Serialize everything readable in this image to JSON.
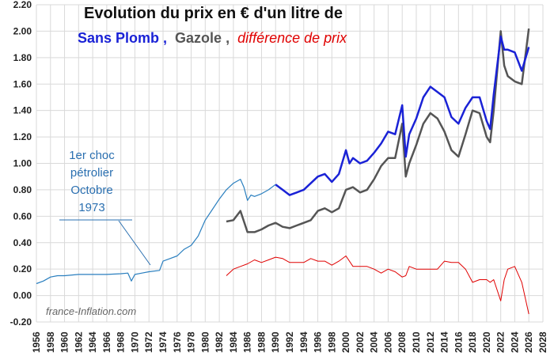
{
  "title": {
    "line1": "Evolution du prix en € d'un litre de",
    "sans_plomb": "Sans Plomb ,",
    "gazole": "Gazole ,",
    "difference": "différence de prix"
  },
  "annotation": {
    "line1": "1er choc",
    "line2": "pétrolier",
    "line3": "Octobre",
    "line4": "1973"
  },
  "watermark": "france-Inflation.com",
  "colors": {
    "early": "#2a7fbf",
    "sans_plomb": "#1a22d6",
    "gazole": "#555555",
    "difference": "#e00000",
    "grid": "#d9d9d9"
  },
  "chart_data": {
    "type": "line",
    "xlim": [
      1956,
      2028
    ],
    "ylim": [
      -0.2,
      2.2
    ],
    "y_ticks": [
      "2.20",
      "2.00",
      "1.80",
      "1.60",
      "1.40",
      "1.20",
      "1.00",
      "0.80",
      "0.60",
      "0.40",
      "0.20",
      "0.00",
      "-0.20"
    ],
    "x_ticks": [
      "1956",
      "1958",
      "1960",
      "1962",
      "1964",
      "1966",
      "1968",
      "1970",
      "1972",
      "1974",
      "1976",
      "1978",
      "1980",
      "1982",
      "1984",
      "1986",
      "1988",
      "1990",
      "1992",
      "1994",
      "1996",
      "1998",
      "2000",
      "2002",
      "2004",
      "2006",
      "2008",
      "2010",
      "2012",
      "2014",
      "2016",
      "2018",
      "2020",
      "2022",
      "2024",
      "2026",
      "2028"
    ],
    "grid": true,
    "series": [
      {
        "name": "",
        "role": "early",
        "x": [
          1956,
          1957,
          1958,
          1959,
          1960,
          1962,
          1964,
          1966,
          1968,
          1969,
          1969.5,
          1970,
          1971,
          1972,
          1973.5,
          1974,
          1975,
          1976,
          1977,
          1978,
          1979,
          1980,
          1981,
          1982,
          1983,
          1984,
          1985,
          1985.5,
          1986,
          1986.5,
          1987,
          1988,
          1989,
          1990
        ],
        "y": [
          0.09,
          0.11,
          0.14,
          0.15,
          0.15,
          0.16,
          0.16,
          0.16,
          0.165,
          0.17,
          0.11,
          0.16,
          0.17,
          0.18,
          0.19,
          0.26,
          0.28,
          0.3,
          0.35,
          0.38,
          0.45,
          0.57,
          0.65,
          0.73,
          0.8,
          0.85,
          0.88,
          0.82,
          0.72,
          0.76,
          0.75,
          0.77,
          0.8,
          0.84
        ]
      },
      {
        "name": "Sans Plomb",
        "role": "sans_plomb",
        "x": [
          1990,
          1991,
          1992,
          1993,
          1994,
          1995,
          1996,
          1997,
          1998,
          1999,
          2000,
          2000.5,
          2001,
          2002,
          2003,
          2004,
          2005,
          2006,
          2007,
          2008,
          2008.5,
          2009,
          2010,
          2011,
          2012,
          2013,
          2014,
          2015,
          2016,
          2017,
          2018,
          2019,
          2020,
          2020.5,
          2021,
          2022,
          2022.5,
          2023,
          2024,
          2025,
          2026
        ],
        "y": [
          0.84,
          0.8,
          0.76,
          0.78,
          0.8,
          0.85,
          0.9,
          0.92,
          0.86,
          0.92,
          1.1,
          1.0,
          1.04,
          1.0,
          1.02,
          1.08,
          1.15,
          1.24,
          1.22,
          1.44,
          1.05,
          1.22,
          1.34,
          1.5,
          1.58,
          1.54,
          1.5,
          1.35,
          1.3,
          1.42,
          1.5,
          1.5,
          1.32,
          1.26,
          1.52,
          1.96,
          1.86,
          1.86,
          1.84,
          1.7,
          1.88
        ]
      },
      {
        "name": "Gazole",
        "role": "gazole",
        "x": [
          1983,
          1984,
          1985,
          1986,
          1987,
          1988,
          1989,
          1990,
          1991,
          1992,
          1993,
          1994,
          1995,
          1996,
          1997,
          1998,
          1999,
          2000,
          2001,
          2002,
          2003,
          2004,
          2005,
          2006,
          2007,
          2008,
          2008.5,
          2009,
          2010,
          2011,
          2012,
          2013,
          2014,
          2015,
          2016,
          2017,
          2018,
          2019,
          2020,
          2020.5,
          2021,
          2022,
          2022.5,
          2023,
          2024,
          2025,
          2026
        ],
        "y": [
          0.56,
          0.57,
          0.64,
          0.48,
          0.48,
          0.5,
          0.53,
          0.55,
          0.52,
          0.51,
          0.53,
          0.55,
          0.57,
          0.64,
          0.66,
          0.63,
          0.66,
          0.8,
          0.82,
          0.78,
          0.8,
          0.88,
          0.98,
          1.04,
          1.04,
          1.3,
          0.9,
          1.0,
          1.14,
          1.3,
          1.38,
          1.34,
          1.24,
          1.1,
          1.05,
          1.22,
          1.4,
          1.38,
          1.2,
          1.16,
          1.4,
          2.0,
          1.74,
          1.66,
          1.62,
          1.6,
          2.02
        ]
      },
      {
        "name": "différence de prix",
        "role": "difference",
        "x": [
          1983,
          1984,
          1985,
          1986,
          1987,
          1988,
          1989,
          1990,
          1991,
          1992,
          1993,
          1994,
          1995,
          1996,
          1997,
          1998,
          1999,
          2000,
          2001,
          2002,
          2003,
          2004,
          2005,
          2006,
          2007,
          2008,
          2008.5,
          2009,
          2010,
          2011,
          2012,
          2013,
          2014,
          2015,
          2016,
          2017,
          2018,
          2019,
          2020,
          2020.5,
          2021,
          2022,
          2022.5,
          2023,
          2024,
          2025,
          2026
        ],
        "y": [
          0.15,
          0.2,
          0.22,
          0.24,
          0.27,
          0.25,
          0.27,
          0.29,
          0.28,
          0.25,
          0.25,
          0.25,
          0.28,
          0.26,
          0.26,
          0.23,
          0.26,
          0.3,
          0.22,
          0.22,
          0.22,
          0.2,
          0.17,
          0.2,
          0.18,
          0.14,
          0.15,
          0.22,
          0.2,
          0.2,
          0.2,
          0.2,
          0.26,
          0.25,
          0.25,
          0.2,
          0.1,
          0.12,
          0.12,
          0.1,
          0.12,
          -0.04,
          0.12,
          0.2,
          0.22,
          0.1,
          -0.14
        ]
      }
    ]
  }
}
